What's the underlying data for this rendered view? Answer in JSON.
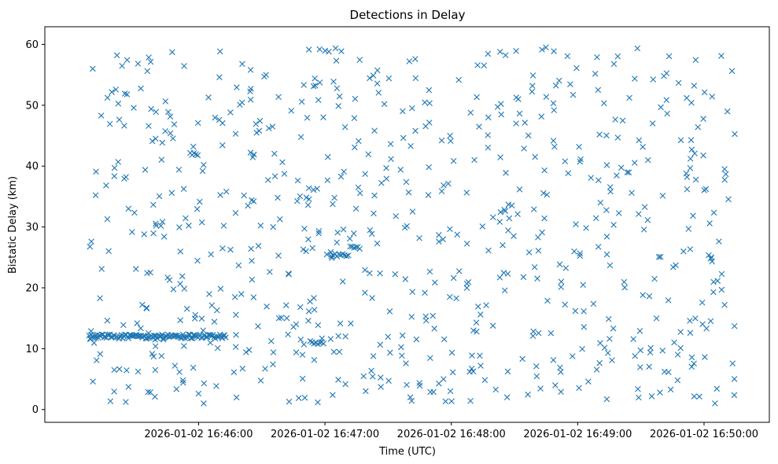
{
  "chart_data": {
    "type": "scatter",
    "title": "Detections in Delay",
    "xlabel": "Time (UTC)",
    "ylabel": "Bistatic Delay (km)",
    "marker": "x",
    "marker_color": "#1f77b4",
    "grid": false,
    "x_start": "2026-01-02 16:45:08",
    "x_end": "2026-01-02 16:50:15",
    "xlim": [
      "2026-01-02 16:44:47",
      "2026-01-02 16:50:31"
    ],
    "ylim": [
      -2.1,
      62.9
    ],
    "x_ticks": [
      "2026-01-02 16:46:00",
      "2026-01-02 16:47:00",
      "2026-01-02 16:48:00",
      "2026-01-02 16:49:00",
      "2026-01-02 16:50:00"
    ],
    "y_ticks": [
      0,
      10,
      20,
      30,
      40,
      50,
      60
    ],
    "series": [
      {
        "clutter_band_delay_km": 12,
        "clutter_band_until": "2026-01-02 16:46:13",
        "ghost_tracks": [
          {
            "start": "2026-01-02 16:46:53",
            "end": "2026-01-02 16:47:00",
            "delay_km": 11.0
          },
          {
            "start": "2026-01-02 16:47:03",
            "end": "2026-01-02 16:47:12",
            "delay_km": 25.4
          },
          {
            "start": "2026-01-02 16:47:12",
            "end": "2026-01-02 16:47:17",
            "delay_km": 26.6
          },
          {
            "start": "2026-01-02 16:45:56",
            "end": "2026-01-02 16:46:00",
            "delay_km": 42.0
          }
        ],
        "random_detections": 720
      }
    ]
  }
}
